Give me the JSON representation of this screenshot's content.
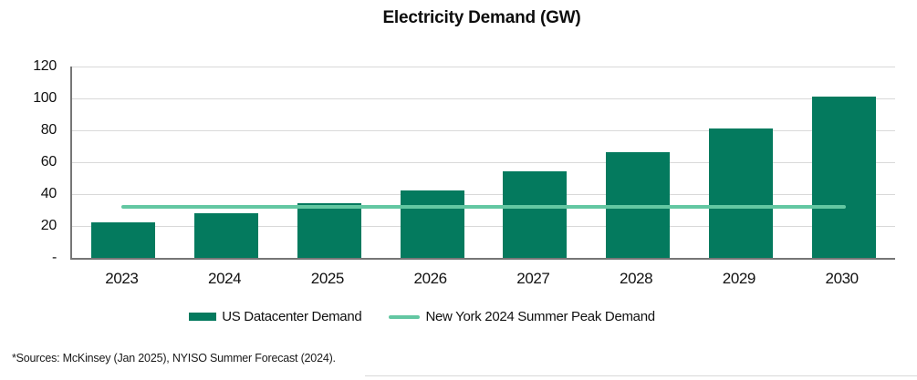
{
  "chart_data": {
    "type": "bar",
    "title": "Electricity Demand (GW)",
    "categories": [
      "2023",
      "2024",
      "2025",
      "2026",
      "2027",
      "2028",
      "2029",
      "2030"
    ],
    "series": [
      {
        "name": "US Datacenter Demand",
        "type": "bar",
        "values": [
          22,
          28,
          34,
          42,
          54,
          66,
          81,
          101
        ]
      },
      {
        "name": "New York 2024 Summer Peak Demand",
        "type": "line",
        "value": 32
      }
    ],
    "xlabel": "",
    "ylabel": "",
    "ylim": [
      0,
      120
    ],
    "yticks": [
      {
        "label": "120",
        "value": 120
      },
      {
        "label": "100",
        "value": 100
      },
      {
        "label": "80",
        "value": 80
      },
      {
        "label": "60",
        "value": 60
      },
      {
        "label": "40",
        "value": 40
      },
      {
        "label": "20",
        "value": 20
      },
      {
        "label": "-",
        "value": 0
      }
    ],
    "grid": true,
    "legend_position": "bottom"
  },
  "footer": {
    "source_note": "*Sources: McKinsey (Jan 2025), NYISO Summer Forecast (2024)."
  },
  "colors": {
    "bar": "#047a5e",
    "line": "#63c7a2",
    "gridline": "#d9d9d9",
    "axis": "#767676",
    "text": "#111111"
  }
}
